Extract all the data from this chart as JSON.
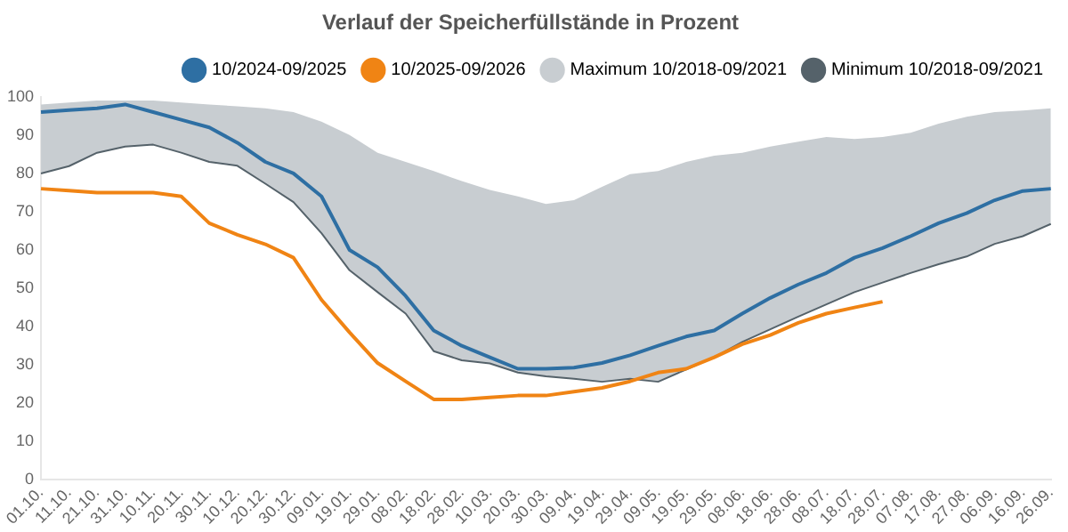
{
  "chart_data": {
    "type": "line",
    "title": "Verlauf der Speicherfüllstände in Prozent",
    "categories": [
      "01.10.",
      "11.10.",
      "21.10.",
      "31.10.",
      "10.11.",
      "20.11.",
      "30.11.",
      "10.12.",
      "20.12.",
      "30.12.",
      "09.01.",
      "19.01.",
      "29.01.",
      "08.02.",
      "18.02.",
      "28.02.",
      "10.03.",
      "20.03.",
      "30.03.",
      "09.04.",
      "19.04.",
      "29.04.",
      "09.05.",
      "19.05.",
      "29.05.",
      "08.06.",
      "18.06.",
      "28.06.",
      "08.07.",
      "18.07.",
      "28.07.",
      "07.08.",
      "17.08.",
      "27.08.",
      "06.09.",
      "16.09.",
      "26.09."
    ],
    "series": [
      {
        "name": "10/2024-09/2025",
        "type": "line",
        "color": "#2e6fa3",
        "values": [
          96,
          96.5,
          97,
          98,
          96,
          94,
          92,
          88,
          83,
          80,
          74,
          60,
          55.5,
          48,
          39,
          35,
          32,
          29,
          29,
          29.3,
          30.5,
          32.5,
          35,
          37.4,
          39,
          43.4,
          47.5,
          51,
          54,
          58,
          60.5,
          63.6,
          67,
          69.6,
          73,
          75.4,
          76
        ]
      },
      {
        "name": "10/2025-09/2026",
        "type": "line",
        "color": "#f08414",
        "values": [
          76,
          75.5,
          75,
          75,
          75,
          74,
          67,
          64,
          61.5,
          58,
          47,
          38.5,
          30.5,
          25.7,
          21,
          21,
          21.5,
          22,
          22,
          23,
          24,
          25.7,
          28,
          29,
          32,
          35.4,
          37.8,
          41,
          43.4,
          45,
          46.5,
          null,
          null,
          null,
          null,
          null,
          null
        ]
      },
      {
        "name": "Maximum 10/2018-09/2021",
        "type": "area",
        "color": "#c8cdd1",
        "values": [
          98,
          98.5,
          99,
          99,
          99,
          98.5,
          98,
          97.5,
          97,
          96,
          93.5,
          90,
          85.4,
          83,
          80.6,
          78,
          75.7,
          74,
          72,
          73,
          76.5,
          79.8,
          80.6,
          83,
          84.6,
          85.4,
          87,
          88.3,
          89.5,
          89,
          89.5,
          90.6,
          93,
          94.8,
          96,
          96.4,
          97
        ]
      },
      {
        "name": "Minimum 10/2018-09/2021",
        "type": "line",
        "color": "#55626a",
        "values": [
          80,
          81.9,
          85.4,
          87,
          87.5,
          85.4,
          83,
          82,
          77.3,
          72.5,
          64.4,
          54.7,
          49,
          43.4,
          33.6,
          31.2,
          30.4,
          28,
          27,
          26.4,
          25.6,
          26.4,
          25.6,
          28.8,
          32,
          36,
          39.3,
          42.6,
          45.8,
          49,
          51.5,
          54,
          56.3,
          58.3,
          61.6,
          63.6,
          66.8
        ]
      }
    ],
    "ylim": [
      0,
      100
    ],
    "yticks": [
      0,
      10,
      20,
      30,
      40,
      50,
      60,
      70,
      80,
      90,
      100
    ],
    "grid": false,
    "legend": "top",
    "marker": "none",
    "line_style": "solid"
  }
}
